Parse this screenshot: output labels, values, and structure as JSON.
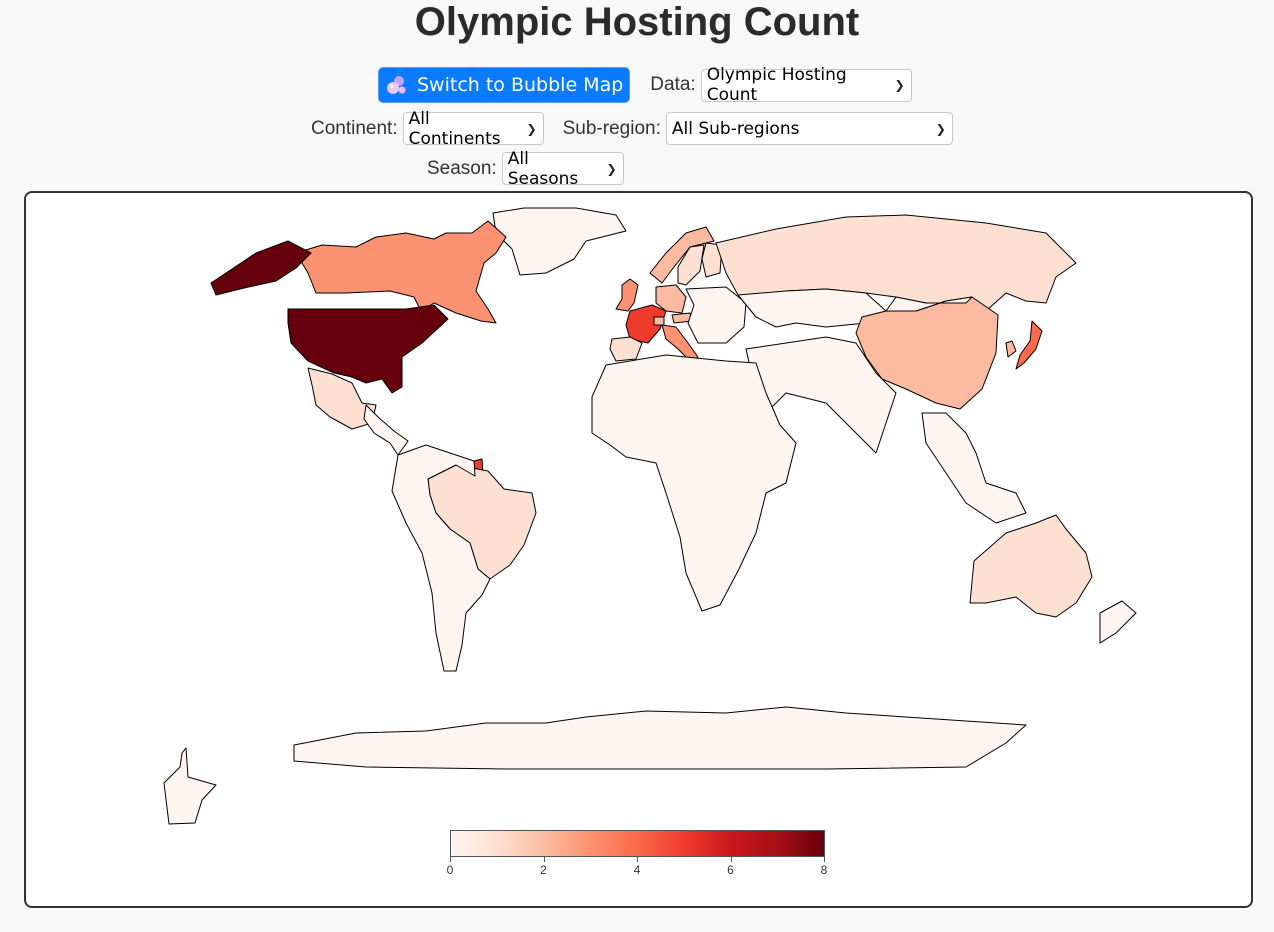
{
  "title": "Olympic Hosting Count",
  "controls": {
    "bubble_button_label": "Switch to Bubble Map",
    "data_label": "Data:",
    "data_value": "Olympic Hosting Count",
    "continent_label": "Continent:",
    "continent_value": "All Continents",
    "subregion_label": "Sub-region:",
    "subregion_value": "All Sub-regions",
    "season_label": "Season:",
    "season_value": "All Seasons"
  },
  "colors": {
    "scale_min": "#fff5f0",
    "scale_mid": "#fb6a4a",
    "scale_max": "#67000d",
    "country_stroke": "#000000",
    "button_blue": "#0a7bff"
  },
  "icons": {
    "bubble_button": "bubbles-icon",
    "dropdown": "chevron-down-icon"
  },
  "legend": {
    "min": 0,
    "max": 8,
    "ticks": [
      "0",
      "2",
      "4",
      "6",
      "8"
    ]
  },
  "chart_data": {
    "type": "choropleth",
    "value_name": "Olympic Hosting Count",
    "color_scale": "Reds",
    "range": [
      0,
      8
    ],
    "regions": [
      {
        "name": "United States",
        "value": 8
      },
      {
        "name": "France",
        "value": 5
      },
      {
        "name": "Japan",
        "value": 4
      },
      {
        "name": "French Guiana",
        "value": 5
      },
      {
        "name": "United Kingdom",
        "value": 3
      },
      {
        "name": "Italy",
        "value": 3
      },
      {
        "name": "Germany",
        "value": 2
      },
      {
        "name": "Canada",
        "value": 3
      },
      {
        "name": "Greenland",
        "value": 0
      },
      {
        "name": "Mexico",
        "value": 1
      },
      {
        "name": "Brazil",
        "value": 1
      },
      {
        "name": "Australia",
        "value": 1
      },
      {
        "name": "China",
        "value": 2
      },
      {
        "name": "Russia",
        "value": 1
      },
      {
        "name": "Norway",
        "value": 2
      },
      {
        "name": "Sweden",
        "value": 1
      },
      {
        "name": "Finland",
        "value": 1
      },
      {
        "name": "Switzerland",
        "value": 2
      },
      {
        "name": "Austria",
        "value": 2
      },
      {
        "name": "Spain",
        "value": 1
      },
      {
        "name": "South Korea",
        "value": 2
      },
      {
        "name": "Other countries",
        "value": 0
      }
    ]
  }
}
